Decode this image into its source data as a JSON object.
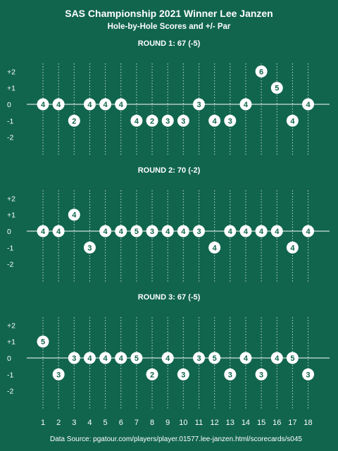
{
  "header": {
    "title": "SAS Championship 2021 Winner Lee Janzen",
    "subtitle": "Hole-by-Hole Scores and +/- Par"
  },
  "footer": {
    "source": "Data Source: pgatour.com/players/player.01577.lee-janzen.html/scorecards/s045"
  },
  "colors": {
    "background": "#11654d",
    "foreground": "#ffffff"
  },
  "chart_data": {
    "type": "scatter",
    "x": [
      1,
      2,
      3,
      4,
      5,
      6,
      7,
      8,
      9,
      10,
      11,
      12,
      13,
      14,
      15,
      16,
      17,
      18
    ],
    "x_tick_labels": [
      "1",
      "2",
      "3",
      "4",
      "5",
      "6",
      "7",
      "8",
      "9",
      "10",
      "11",
      "12",
      "13",
      "14",
      "15",
      "16",
      "17",
      "18"
    ],
    "y_tick_labels": [
      "+2",
      "+1",
      "0",
      "-1",
      "-2"
    ],
    "y_tick_values": [
      2,
      1,
      0,
      -1,
      -2
    ],
    "ylim": [
      -3.5,
      2.5
    ],
    "grid": "dotted vertical guide per hole",
    "marker_label": "strokes on hole",
    "rounds": [
      {
        "title": "ROUND 1: 67 (-5)",
        "scores": [
          4,
          4,
          2,
          4,
          4,
          4,
          4,
          2,
          3,
          3,
          3,
          4,
          3,
          4,
          6,
          5,
          4,
          4
        ],
        "vs_par": [
          0,
          0,
          -1,
          0,
          0,
          0,
          -1,
          -1,
          -1,
          -1,
          0,
          -1,
          -1,
          0,
          2,
          1,
          -1,
          0
        ]
      },
      {
        "title": "ROUND 2: 70 (-2)",
        "scores": [
          4,
          4,
          4,
          3,
          4,
          4,
          5,
          3,
          4,
          4,
          3,
          4,
          4,
          4,
          4,
          4,
          4,
          4
        ],
        "vs_par": [
          0,
          0,
          1,
          -1,
          0,
          0,
          0,
          0,
          0,
          0,
          0,
          -1,
          0,
          0,
          0,
          0,
          -1,
          0
        ]
      },
      {
        "title": "ROUND 3: 67 (-5)",
        "scores": [
          5,
          3,
          3,
          4,
          4,
          4,
          5,
          2,
          4,
          3,
          3,
          5,
          3,
          4,
          3,
          4,
          5,
          3
        ],
        "vs_par": [
          1,
          -1,
          0,
          0,
          0,
          0,
          0,
          -1,
          0,
          -1,
          0,
          0,
          -1,
          0,
          -1,
          0,
          0,
          -1
        ]
      }
    ]
  }
}
